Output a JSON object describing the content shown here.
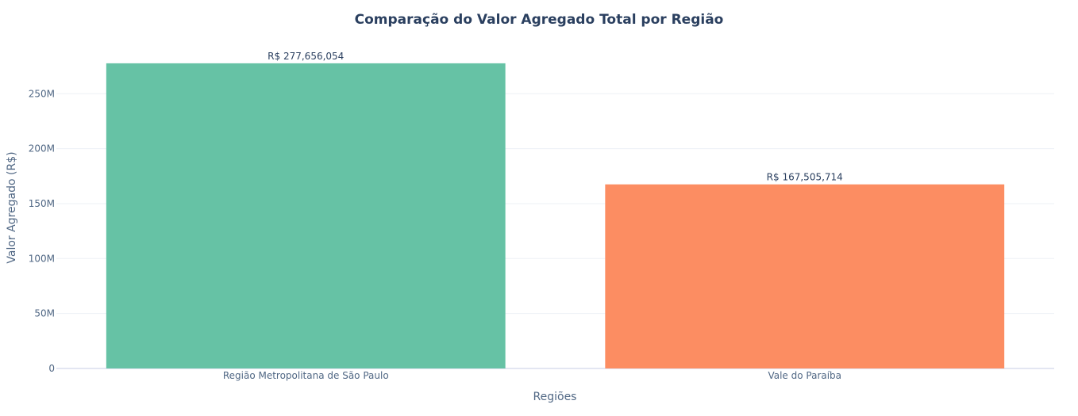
{
  "chart_data": {
    "type": "bar",
    "title": "Comparação do Valor Agregado Total por Região",
    "xlabel": "Regiões",
    "ylabel": "Valor Agregado (R$)",
    "categories": [
      "Região Metropolitana de São Paulo",
      "Vale do Paraíba"
    ],
    "values": [
      277656054,
      167505714
    ],
    "data_labels": [
      "R$ 277,656,054",
      "R$ 167,505,714"
    ],
    "colors": [
      "#66c2a5",
      "#fc8d62"
    ],
    "ylim": [
      0,
      292000000
    ],
    "yticks": [
      0,
      50000000,
      100000000,
      150000000,
      200000000,
      250000000
    ],
    "ytick_labels": [
      "0",
      "50M",
      "100M",
      "150M",
      "200M",
      "250M"
    ],
    "grid": true,
    "legend": "none"
  }
}
